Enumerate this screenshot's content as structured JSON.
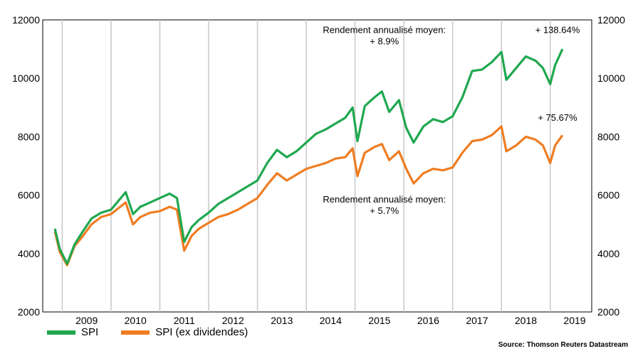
{
  "chart_data": {
    "type": "line",
    "x_axis": {
      "categories": [
        "2009",
        "2010",
        "2011",
        "2012",
        "2013",
        "2014",
        "2015",
        "2016",
        "2017",
        "2018",
        "2019"
      ]
    },
    "y_axis": {
      "range": [
        2000,
        12000
      ],
      "ticks": [
        2000,
        4000,
        6000,
        8000,
        10000,
        12000
      ],
      "dual": true
    },
    "grid": "vertical",
    "series": [
      {
        "name": "SPI",
        "color": "#1fa84f",
        "points": [
          [
            2008.85,
            4850
          ],
          [
            2008.95,
            4150
          ],
          [
            2009.1,
            3650
          ],
          [
            2009.25,
            4300
          ],
          [
            2009.4,
            4700
          ],
          [
            2009.6,
            5200
          ],
          [
            2009.8,
            5400
          ],
          [
            2010.0,
            5500
          ],
          [
            2010.15,
            5800
          ],
          [
            2010.3,
            6100
          ],
          [
            2010.45,
            5350
          ],
          [
            2010.6,
            5600
          ],
          [
            2010.8,
            5750
          ],
          [
            2011.0,
            5900
          ],
          [
            2011.2,
            6050
          ],
          [
            2011.35,
            5900
          ],
          [
            2011.5,
            4400
          ],
          [
            2011.65,
            4900
          ],
          [
            2011.8,
            5150
          ],
          [
            2012.0,
            5400
          ],
          [
            2012.2,
            5700
          ],
          [
            2012.4,
            5900
          ],
          [
            2012.6,
            6100
          ],
          [
            2012.8,
            6300
          ],
          [
            2013.0,
            6500
          ],
          [
            2013.2,
            7100
          ],
          [
            2013.4,
            7550
          ],
          [
            2013.6,
            7300
          ],
          [
            2013.8,
            7500
          ],
          [
            2014.0,
            7800
          ],
          [
            2014.2,
            8100
          ],
          [
            2014.4,
            8250
          ],
          [
            2014.6,
            8450
          ],
          [
            2014.8,
            8650
          ],
          [
            2014.95,
            9000
          ],
          [
            2015.05,
            7850
          ],
          [
            2015.2,
            9050
          ],
          [
            2015.4,
            9350
          ],
          [
            2015.55,
            9550
          ],
          [
            2015.7,
            8850
          ],
          [
            2015.9,
            9250
          ],
          [
            2016.05,
            8300
          ],
          [
            2016.2,
            7800
          ],
          [
            2016.4,
            8350
          ],
          [
            2016.6,
            8600
          ],
          [
            2016.8,
            8500
          ],
          [
            2017.0,
            8700
          ],
          [
            2017.2,
            9350
          ],
          [
            2017.4,
            10250
          ],
          [
            2017.6,
            10300
          ],
          [
            2017.8,
            10550
          ],
          [
            2018.0,
            10900
          ],
          [
            2018.1,
            9950
          ],
          [
            2018.3,
            10350
          ],
          [
            2018.5,
            10750
          ],
          [
            2018.7,
            10600
          ],
          [
            2018.85,
            10350
          ],
          [
            2019.0,
            9800
          ],
          [
            2019.1,
            10450
          ],
          [
            2019.25,
            11000
          ]
        ]
      },
      {
        "name": "SPI (ex dividendes)",
        "color": "#ef7d22",
        "points": [
          [
            2008.85,
            4750
          ],
          [
            2008.95,
            4050
          ],
          [
            2009.1,
            3600
          ],
          [
            2009.25,
            4250
          ],
          [
            2009.4,
            4550
          ],
          [
            2009.6,
            5000
          ],
          [
            2009.8,
            5250
          ],
          [
            2010.0,
            5350
          ],
          [
            2010.15,
            5550
          ],
          [
            2010.3,
            5750
          ],
          [
            2010.45,
            5000
          ],
          [
            2010.6,
            5250
          ],
          [
            2010.8,
            5400
          ],
          [
            2011.0,
            5450
          ],
          [
            2011.2,
            5600
          ],
          [
            2011.35,
            5500
          ],
          [
            2011.5,
            4100
          ],
          [
            2011.65,
            4600
          ],
          [
            2011.8,
            4850
          ],
          [
            2012.0,
            5050
          ],
          [
            2012.2,
            5250
          ],
          [
            2012.4,
            5350
          ],
          [
            2012.6,
            5500
          ],
          [
            2012.8,
            5700
          ],
          [
            2013.0,
            5900
          ],
          [
            2013.2,
            6350
          ],
          [
            2013.4,
            6750
          ],
          [
            2013.6,
            6500
          ],
          [
            2013.8,
            6700
          ],
          [
            2014.0,
            6900
          ],
          [
            2014.2,
            7000
          ],
          [
            2014.4,
            7100
          ],
          [
            2014.6,
            7250
          ],
          [
            2014.8,
            7300
          ],
          [
            2014.95,
            7600
          ],
          [
            2015.05,
            6650
          ],
          [
            2015.2,
            7450
          ],
          [
            2015.4,
            7650
          ],
          [
            2015.55,
            7750
          ],
          [
            2015.7,
            7200
          ],
          [
            2015.9,
            7500
          ],
          [
            2016.05,
            6900
          ],
          [
            2016.2,
            6400
          ],
          [
            2016.4,
            6750
          ],
          [
            2016.6,
            6900
          ],
          [
            2016.8,
            6850
          ],
          [
            2017.0,
            6950
          ],
          [
            2017.2,
            7450
          ],
          [
            2017.4,
            7850
          ],
          [
            2017.6,
            7900
          ],
          [
            2017.8,
            8050
          ],
          [
            2018.0,
            8350
          ],
          [
            2018.1,
            7500
          ],
          [
            2018.3,
            7700
          ],
          [
            2018.5,
            8000
          ],
          [
            2018.7,
            7900
          ],
          [
            2018.85,
            7700
          ],
          [
            2019.0,
            7100
          ],
          [
            2019.1,
            7700
          ],
          [
            2019.25,
            8050
          ]
        ]
      }
    ],
    "annotations": [
      {
        "id": "spi_avg",
        "lines": [
          "Rendement annualisé moyen:",
          "+ 8.9%"
        ]
      },
      {
        "id": "spi_total",
        "lines": [
          "+ 138.64%"
        ]
      },
      {
        "id": "ex_total",
        "lines": [
          "+ 75.67%"
        ]
      },
      {
        "id": "ex_avg",
        "lines": [
          "Rendement annualisé moyen:",
          "+ 5.7%"
        ]
      }
    ]
  },
  "source": "Source: Thomson Reuters Datastream"
}
